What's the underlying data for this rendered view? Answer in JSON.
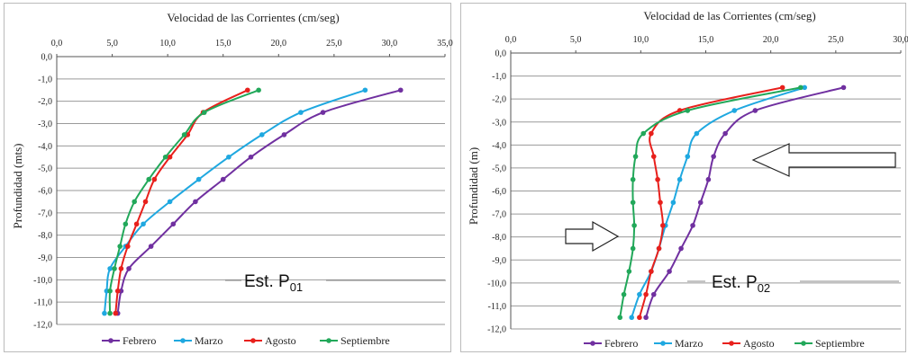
{
  "chart_data": [
    {
      "type": "line",
      "title": "Velocidad de las Corrientes (cm/seg)",
      "ylabel": "Profundidad (mts)",
      "xlabel": "",
      "xlim": [
        0,
        35
      ],
      "ylim": [
        -12,
        0
      ],
      "x_ticks": [
        "0,0",
        "5,0",
        "10,0",
        "15,0",
        "20,0",
        "25,0",
        "30,0",
        "35,0"
      ],
      "y_ticks": [
        "0,0",
        "-1,0",
        "-2,0",
        "-3,0",
        "-4,0",
        "-5,0",
        "-6,0",
        "-7,0",
        "-8,0",
        "-9,0",
        "-10,0",
        "-11,0",
        "-12,0"
      ],
      "annotation_base": "Est. P",
      "annotation_sub": "01",
      "grid": true,
      "legend_position": "bottom",
      "series": [
        {
          "name": "Febrero",
          "color": "#7030a0",
          "points": [
            [
              31.0,
              -1.5
            ],
            [
              24.0,
              -2.5
            ],
            [
              20.5,
              -3.5
            ],
            [
              17.5,
              -4.5
            ],
            [
              15.0,
              -5.5
            ],
            [
              12.5,
              -6.5
            ],
            [
              10.5,
              -7.5
            ],
            [
              8.5,
              -8.5
            ],
            [
              6.5,
              -9.5
            ],
            [
              5.8,
              -10.5
            ],
            [
              5.5,
              -11.5
            ]
          ]
        },
        {
          "name": "Marzo",
          "color": "#1fa8e0",
          "points": [
            [
              27.8,
              -1.5
            ],
            [
              22.0,
              -2.5
            ],
            [
              18.5,
              -3.5
            ],
            [
              15.5,
              -4.5
            ],
            [
              12.8,
              -5.5
            ],
            [
              10.2,
              -6.5
            ],
            [
              7.8,
              -7.5
            ],
            [
              6.2,
              -8.5
            ],
            [
              4.8,
              -9.5
            ],
            [
              4.5,
              -10.5
            ],
            [
              4.3,
              -11.5
            ]
          ]
        },
        {
          "name": "Agosto",
          "color": "#e8201c",
          "points": [
            [
              17.2,
              -1.5
            ],
            [
              13.2,
              -2.5
            ],
            [
              11.8,
              -3.5
            ],
            [
              10.2,
              -4.5
            ],
            [
              8.8,
              -5.5
            ],
            [
              8.0,
              -6.5
            ],
            [
              7.2,
              -7.5
            ],
            [
              6.4,
              -8.5
            ],
            [
              5.8,
              -9.5
            ],
            [
              5.5,
              -10.5
            ],
            [
              5.3,
              -11.5
            ]
          ]
        },
        {
          "name": "Septiembre",
          "color": "#22a85a",
          "points": [
            [
              18.2,
              -1.5
            ],
            [
              13.3,
              -2.5
            ],
            [
              11.5,
              -3.5
            ],
            [
              9.8,
              -4.5
            ],
            [
              8.3,
              -5.5
            ],
            [
              7.0,
              -6.5
            ],
            [
              6.2,
              -7.5
            ],
            [
              5.7,
              -8.5
            ],
            [
              5.2,
              -9.5
            ],
            [
              4.8,
              -10.5
            ],
            [
              4.8,
              -11.5
            ]
          ]
        }
      ]
    },
    {
      "type": "line",
      "title": "Velocidad de las Corrientes (cm/seg)",
      "ylabel": "Profundidad (m)",
      "xlabel": "",
      "xlim": [
        0,
        30
      ],
      "ylim": [
        -12,
        0
      ],
      "x_ticks": [
        "0,0",
        "5,0",
        "10,0",
        "15,0",
        "20,0",
        "25,0",
        "30,0"
      ],
      "y_ticks": [
        "0,0",
        "-1,0",
        "-2,0",
        "-3,0",
        "-4,0",
        "-5,0",
        "-6,0",
        "-7,0",
        "-8,0",
        "-9,0",
        "-10,0",
        "-11,0",
        "-12,0"
      ],
      "annotation_base": "Est. P",
      "annotation_sub": "02",
      "grid": true,
      "legend_position": "bottom",
      "series": [
        {
          "name": "Febrero",
          "color": "#7030a0",
          "points": [
            [
              25.6,
              -1.5
            ],
            [
              18.8,
              -2.5
            ],
            [
              16.5,
              -3.5
            ],
            [
              15.6,
              -4.5
            ],
            [
              15.2,
              -5.5
            ],
            [
              14.6,
              -6.5
            ],
            [
              14.0,
              -7.5
            ],
            [
              13.1,
              -8.5
            ],
            [
              12.2,
              -9.5
            ],
            [
              11.0,
              -10.5
            ],
            [
              10.4,
              -11.5
            ]
          ]
        },
        {
          "name": "Marzo",
          "color": "#1fa8e0",
          "points": [
            [
              22.6,
              -1.5
            ],
            [
              17.2,
              -2.5
            ],
            [
              14.3,
              -3.5
            ],
            [
              13.6,
              -4.5
            ],
            [
              13.0,
              -5.5
            ],
            [
              12.5,
              -6.5
            ],
            [
              11.9,
              -7.5
            ],
            [
              11.4,
              -8.5
            ],
            [
              10.8,
              -9.5
            ],
            [
              9.9,
              -10.5
            ],
            [
              9.3,
              -11.5
            ]
          ]
        },
        {
          "name": "Agosto",
          "color": "#e8201c",
          "points": [
            [
              20.9,
              -1.5
            ],
            [
              13.0,
              -2.5
            ],
            [
              10.8,
              -3.5
            ],
            [
              11.0,
              -4.5
            ],
            [
              11.3,
              -5.5
            ],
            [
              11.5,
              -6.5
            ],
            [
              11.7,
              -7.5
            ],
            [
              11.4,
              -8.5
            ],
            [
              10.8,
              -9.5
            ],
            [
              10.4,
              -10.5
            ],
            [
              9.9,
              -11.5
            ]
          ]
        },
        {
          "name": "Septiembre",
          "color": "#22a85a",
          "points": [
            [
              22.3,
              -1.5
            ],
            [
              13.6,
              -2.5
            ],
            [
              10.2,
              -3.5
            ],
            [
              9.6,
              -4.5
            ],
            [
              9.4,
              -5.5
            ],
            [
              9.4,
              -6.5
            ],
            [
              9.5,
              -7.5
            ],
            [
              9.4,
              -8.5
            ],
            [
              9.1,
              -9.5
            ],
            [
              8.7,
              -10.5
            ],
            [
              8.4,
              -11.5
            ]
          ]
        }
      ]
    }
  ]
}
